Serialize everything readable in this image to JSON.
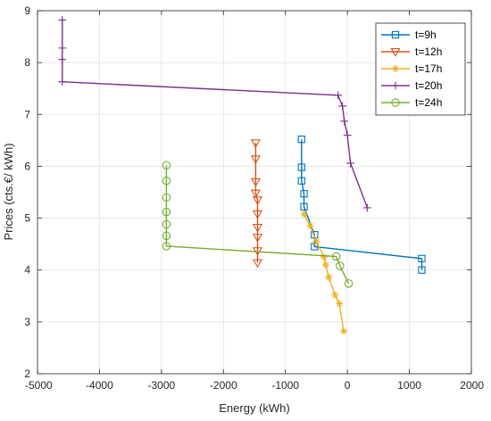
{
  "chart_data": {
    "type": "line",
    "title": "",
    "xlabel": "Energy (kWh)",
    "ylabel": "Prices (cts.€/ kWh)",
    "xlim": [
      -5000,
      2000
    ],
    "ylim": [
      2,
      9
    ],
    "xticks": [
      -5000,
      -4000,
      -3000,
      -2000,
      -1000,
      0,
      1000,
      2000
    ],
    "yticks": [
      2,
      3,
      4,
      5,
      6,
      7,
      8,
      9
    ],
    "grid": true,
    "legend_position": "top-right",
    "series": [
      {
        "name": "t=9h",
        "color": "#0072BD",
        "marker": "square",
        "points": [
          [
            -740,
            6.52
          ],
          [
            -740,
            5.98
          ],
          [
            -740,
            5.72
          ],
          [
            -700,
            5.47
          ],
          [
            -700,
            5.22
          ],
          [
            -530,
            4.68
          ],
          [
            -530,
            4.45
          ],
          [
            1200,
            4.22
          ],
          [
            1200,
            4.0
          ]
        ]
      },
      {
        "name": "t=12h",
        "color": "#D95319",
        "marker": "triangle-down",
        "points": [
          [
            -1480,
            6.45
          ],
          [
            -1480,
            6.14
          ],
          [
            -1480,
            5.7
          ],
          [
            -1480,
            5.48
          ],
          [
            -1450,
            5.35
          ],
          [
            -1450,
            5.08
          ],
          [
            -1450,
            4.82
          ],
          [
            -1450,
            4.63
          ],
          [
            -1450,
            4.37
          ],
          [
            -1450,
            4.14
          ]
        ]
      },
      {
        "name": "t=17h",
        "color": "#EDB120",
        "marker": "asterisk",
        "points": [
          [
            -700,
            5.08
          ],
          [
            -600,
            4.85
          ],
          [
            -500,
            4.55
          ],
          [
            -380,
            4.25
          ],
          [
            -350,
            4.1
          ],
          [
            -300,
            3.86
          ],
          [
            -200,
            3.52
          ],
          [
            -130,
            3.35
          ],
          [
            -60,
            2.82
          ]
        ]
      },
      {
        "name": "t=20h",
        "color": "#7E2F8E",
        "marker": "plus",
        "points": [
          [
            -4600,
            8.82
          ],
          [
            -4600,
            8.28
          ],
          [
            -4600,
            8.06
          ],
          [
            -4600,
            7.63
          ],
          [
            -150,
            7.37
          ],
          [
            -80,
            7.16
          ],
          [
            -50,
            6.87
          ],
          [
            0,
            6.6
          ],
          [
            50,
            6.06
          ],
          [
            320,
            5.2
          ]
        ]
      },
      {
        "name": "t=24h",
        "color": "#77AC30",
        "marker": "circle",
        "points": [
          [
            -2920,
            6.02
          ],
          [
            -2920,
            5.72
          ],
          [
            -2920,
            5.4
          ],
          [
            -2920,
            5.12
          ],
          [
            -2920,
            4.88
          ],
          [
            -2920,
            4.66
          ],
          [
            -2920,
            4.46
          ],
          [
            -180,
            4.26
          ],
          [
            -120,
            4.08
          ],
          [
            20,
            3.74
          ]
        ]
      }
    ]
  }
}
